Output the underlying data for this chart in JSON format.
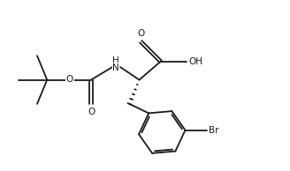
{
  "bg_color": "#ffffff",
  "line_color": "#1a1a1a",
  "line_width": 1.3,
  "figsize": [
    3.28,
    1.94
  ],
  "dpi": 100,
  "labels": {
    "O_boc_ester": "O",
    "O_carbonyl_boc": "O",
    "NH": "H\nN",
    "COOH_O": "O",
    "COOH_OH": "OH",
    "Br": "Br"
  },
  "font_size": 7.5,
  "xlim": [
    0,
    10
  ],
  "ylim": [
    0,
    6
  ]
}
